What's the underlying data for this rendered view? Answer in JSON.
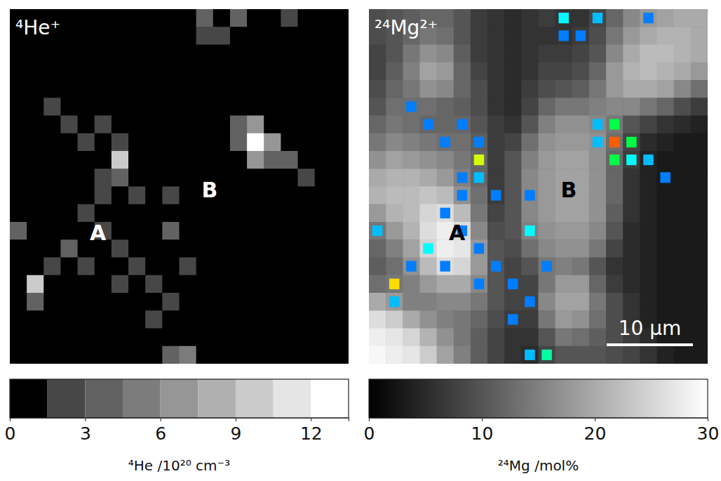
{
  "chart_data": [
    {
      "type": "heatmap",
      "title": "⁴He⁺",
      "annotations": [
        "A",
        "B"
      ],
      "colorbar_label": "⁴He /10²⁰ cm⁻³",
      "colorbar_range": [
        0,
        13.5
      ],
      "colorbar_ticks": [
        0,
        3,
        6,
        9,
        12
      ],
      "colorbar_bins": [
        0,
        1.5,
        3,
        4.5,
        6,
        7.5,
        9,
        10.5,
        12,
        13.5
      ],
      "cells": [
        [
          0,
          0,
          0,
          0,
          0,
          0,
          0,
          0,
          0,
          0,
          0,
          4,
          0,
          3,
          0,
          0,
          2,
          0,
          0,
          0
        ],
        [
          0,
          0,
          0,
          0,
          0,
          0,
          0,
          0,
          0,
          0,
          0,
          2,
          2,
          0,
          0,
          0,
          0,
          0,
          0,
          0
        ],
        [
          0,
          0,
          0,
          0,
          0,
          0,
          0,
          0,
          0,
          0,
          0,
          0,
          0,
          0,
          0,
          0,
          0,
          0,
          0,
          0
        ],
        [
          0,
          0,
          0,
          0,
          0,
          0,
          0,
          0,
          0,
          0,
          0,
          0,
          0,
          0,
          0,
          0,
          0,
          0,
          0,
          0
        ],
        [
          0,
          0,
          0,
          0,
          0,
          0,
          0,
          0,
          0,
          0,
          0,
          0,
          0,
          0,
          0,
          0,
          0,
          0,
          0,
          0
        ],
        [
          0,
          0,
          2,
          0,
          0,
          0,
          0,
          0,
          0,
          0,
          0,
          0,
          0,
          0,
          0,
          0,
          0,
          0,
          0,
          0
        ],
        [
          0,
          0,
          0,
          2,
          0,
          2,
          0,
          0,
          0,
          0,
          0,
          0,
          0,
          3,
          6,
          0,
          0,
          0,
          0,
          0
        ],
        [
          0,
          0,
          0,
          0,
          2,
          0,
          2,
          0,
          0,
          0,
          0,
          0,
          0,
          3,
          12,
          6,
          0,
          0,
          0,
          0
        ],
        [
          0,
          0,
          0,
          0,
          0,
          0,
          9,
          0,
          0,
          0,
          0,
          0,
          0,
          0,
          6,
          4,
          3,
          0,
          0,
          0
        ],
        [
          0,
          0,
          0,
          0,
          0,
          2,
          3,
          0,
          0,
          0,
          0,
          0,
          0,
          0,
          0,
          0,
          0,
          2,
          0,
          0
        ],
        [
          0,
          0,
          0,
          0,
          0,
          2,
          0,
          2,
          0,
          2,
          0,
          0,
          0,
          0,
          0,
          0,
          0,
          0,
          0,
          0
        ],
        [
          0,
          0,
          0,
          0,
          2,
          0,
          0,
          0,
          0,
          0,
          0,
          0,
          0,
          0,
          0,
          0,
          0,
          0,
          0,
          0
        ],
        [
          3,
          0,
          0,
          0,
          0,
          2,
          0,
          0,
          0,
          4,
          0,
          0,
          0,
          0,
          0,
          0,
          0,
          0,
          0,
          0
        ],
        [
          0,
          0,
          0,
          4,
          0,
          0,
          2,
          0,
          0,
          0,
          0,
          0,
          0,
          0,
          0,
          0,
          0,
          0,
          0,
          0
        ],
        [
          0,
          0,
          2,
          0,
          2,
          0,
          0,
          2,
          0,
          0,
          2,
          0,
          0,
          0,
          0,
          0,
          0,
          0,
          0,
          0
        ],
        [
          0,
          10,
          0,
          0,
          0,
          0,
          2,
          0,
          2,
          0,
          0,
          0,
          0,
          0,
          0,
          0,
          0,
          0,
          0,
          0
        ],
        [
          0,
          3,
          0,
          0,
          0,
          0,
          0,
          0,
          0,
          2,
          0,
          0,
          0,
          0,
          0,
          0,
          0,
          0,
          0,
          0
        ],
        [
          0,
          0,
          0,
          0,
          0,
          0,
          0,
          0,
          2,
          0,
          0,
          0,
          0,
          0,
          0,
          0,
          0,
          0,
          0,
          0
        ],
        [
          0,
          0,
          0,
          0,
          0,
          0,
          0,
          0,
          0,
          0,
          0,
          0,
          0,
          0,
          0,
          0,
          0,
          0,
          0,
          0
        ],
        [
          0,
          0,
          0,
          0,
          0,
          0,
          0,
          0,
          0,
          3,
          5,
          0,
          0,
          0,
          0,
          0,
          0,
          0,
          0,
          0
        ]
      ]
    },
    {
      "type": "heatmap",
      "title": "²⁴Mg²⁺",
      "annotations": [
        "A",
        "B"
      ],
      "scale_bar_label": "10 µm",
      "colorbar_label": "²⁴Mg /mol%",
      "colorbar_range": [
        0,
        30
      ],
      "colorbar_ticks": [
        0,
        10,
        20,
        30
      ],
      "cells": [
        [
          9,
          10,
          11,
          12,
          12,
          10,
          7,
          6,
          5,
          6,
          7,
          6,
          6,
          8,
          12,
          16,
          18,
          19,
          20,
          20
        ],
        [
          9,
          10,
          12,
          14,
          13,
          10,
          7,
          6,
          5,
          6,
          6,
          6,
          7,
          9,
          14,
          18,
          20,
          21,
          21,
          20
        ],
        [
          8,
          10,
          14,
          17,
          16,
          11,
          7,
          6,
          5,
          6,
          7,
          7,
          8,
          10,
          16,
          20,
          22,
          22,
          21,
          20
        ],
        [
          8,
          11,
          15,
          19,
          18,
          12,
          8,
          6,
          5,
          6,
          8,
          8,
          9,
          12,
          18,
          21,
          22,
          21,
          20,
          18
        ],
        [
          9,
          12,
          14,
          17,
          16,
          12,
          9,
          6,
          5,
          7,
          9,
          10,
          11,
          14,
          18,
          20,
          20,
          19,
          16,
          13
        ],
        [
          10,
          13,
          13,
          13,
          12,
          11,
          9,
          6,
          5,
          8,
          12,
          14,
          14,
          15,
          16,
          16,
          14,
          12,
          9,
          7
        ],
        [
          12,
          14,
          13,
          12,
          12,
          12,
          10,
          7,
          6,
          10,
          15,
          17,
          17,
          16,
          14,
          10,
          8,
          6,
          5,
          4
        ],
        [
          14,
          16,
          15,
          14,
          13,
          13,
          11,
          7,
          8,
          13,
          17,
          18,
          18,
          17,
          13,
          8,
          5,
          4,
          3,
          3
        ],
        [
          17,
          19,
          18,
          17,
          16,
          14,
          12,
          7,
          10,
          15,
          18,
          19,
          19,
          17,
          12,
          7,
          4,
          3,
          3,
          3
        ],
        [
          20,
          21,
          21,
          20,
          18,
          15,
          12,
          7,
          10,
          16,
          18,
          19,
          19,
          17,
          12,
          6,
          4,
          3,
          3,
          3
        ],
        [
          21,
          22,
          22,
          23,
          22,
          17,
          13,
          7,
          10,
          16,
          18,
          19,
          19,
          17,
          12,
          6,
          4,
          3,
          3,
          3
        ],
        [
          18,
          21,
          22,
          25,
          26,
          22,
          14,
          8,
          10,
          16,
          18,
          19,
          19,
          17,
          11,
          6,
          4,
          3,
          3,
          3
        ],
        [
          14,
          18,
          21,
          26,
          28,
          26,
          16,
          9,
          10,
          15,
          17,
          18,
          18,
          16,
          10,
          5,
          4,
          3,
          3,
          3
        ],
        [
          12,
          15,
          19,
          25,
          28,
          27,
          18,
          10,
          9,
          13,
          16,
          17,
          17,
          14,
          8,
          5,
          4,
          3,
          3,
          3
        ],
        [
          11,
          13,
          17,
          22,
          26,
          25,
          18,
          10,
          8,
          10,
          14,
          15,
          14,
          10,
          6,
          5,
          4,
          3,
          3,
          3
        ],
        [
          13,
          14,
          15,
          18,
          20,
          20,
          16,
          10,
          8,
          8,
          14,
          18,
          18,
          12,
          7,
          5,
          4,
          3,
          3,
          3
        ],
        [
          20,
          18,
          15,
          15,
          16,
          16,
          14,
          10,
          8,
          8,
          16,
          19,
          19,
          14,
          9,
          6,
          4,
          3,
          3,
          3
        ],
        [
          26,
          24,
          20,
          17,
          15,
          14,
          12,
          9,
          7,
          7,
          14,
          18,
          17,
          13,
          9,
          6,
          4,
          3,
          3,
          3
        ],
        [
          28,
          27,
          25,
          21,
          17,
          14,
          11,
          8,
          6,
          6,
          10,
          14,
          13,
          11,
          9,
          7,
          5,
          3,
          3,
          3
        ],
        [
          29,
          28,
          27,
          24,
          19,
          15,
          11,
          8,
          6,
          5,
          8,
          10,
          10,
          10,
          9,
          8,
          6,
          4,
          3,
          3
        ]
      ]
    }
  ]
}
